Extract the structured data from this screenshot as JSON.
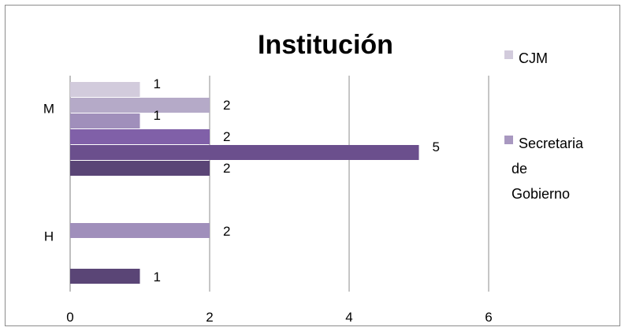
{
  "chart_data": {
    "type": "bar",
    "orientation": "horizontal",
    "title": "Institución",
    "xlabel": "",
    "ylabel": "",
    "xlim": [
      0,
      6
    ],
    "x_ticks": [
      0,
      2,
      4,
      6
    ],
    "categories": [
      "M",
      "H"
    ],
    "grid": "vertical major gridlines",
    "legend_position": "right",
    "series": [
      {
        "name": "CJM",
        "color": "#d2cbdc",
        "values": [
          1,
          null
        ]
      },
      {
        "name": "",
        "color": "#b5aac8",
        "values": [
          2,
          null
        ]
      },
      {
        "name": "",
        "color": "#a08fbb",
        "values": [
          1,
          2
        ]
      },
      {
        "name": "",
        "color": "#8060a8",
        "values": [
          2,
          null
        ]
      },
      {
        "name": "Secretaria de Gobierno",
        "color": "#6b4f8d",
        "values": [
          5,
          null
        ]
      },
      {
        "name": "",
        "color": "#5a4576",
        "values": [
          2,
          1
        ]
      }
    ],
    "legend": [
      {
        "lines": [
          "CJM"
        ],
        "color": "#d2cbdc"
      },
      {
        "lines": [
          "Secretaria",
          "de",
          "Gobierno"
        ],
        "color": "#a898c0"
      }
    ]
  }
}
